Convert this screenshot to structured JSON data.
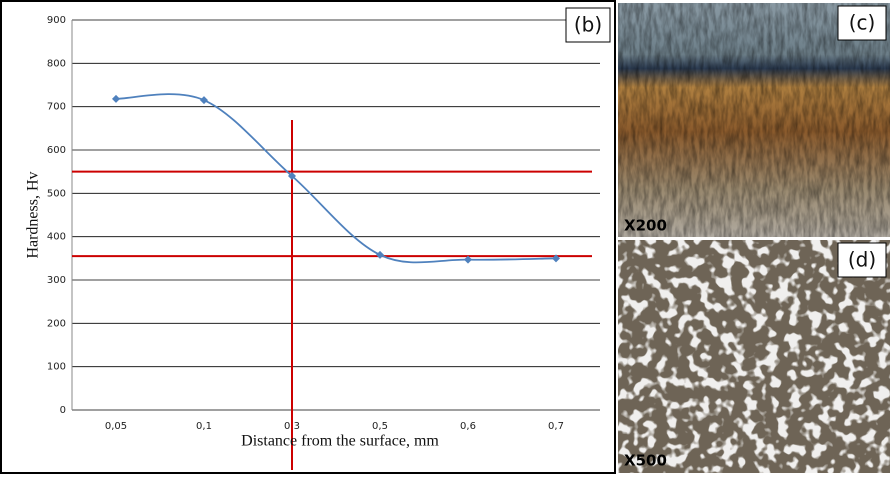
{
  "chart_data": {
    "type": "line",
    "panel_label": "(b)",
    "x_label": "Distance from the surface, mm",
    "y_label": "Hardness, Hv",
    "categories": [
      "0,05",
      "0,1",
      "0,3",
      "0,5",
      "0,6",
      "0,7"
    ],
    "values": [
      718,
      715,
      540,
      358,
      347,
      350
    ],
    "color": "#4f81bd",
    "ylim": [
      0,
      900
    ],
    "yticks": [
      0,
      100,
      200,
      300,
      400,
      500,
      600,
      700,
      800,
      900
    ],
    "grid": true,
    "reference_lines": {
      "y": [
        550,
        355
      ],
      "x": "0,3",
      "color": "#cc0000"
    }
  },
  "micrographs": [
    {
      "label": "(c)",
      "magnification": "X200"
    },
    {
      "label": "(d)",
      "magnification": "X500"
    }
  ]
}
